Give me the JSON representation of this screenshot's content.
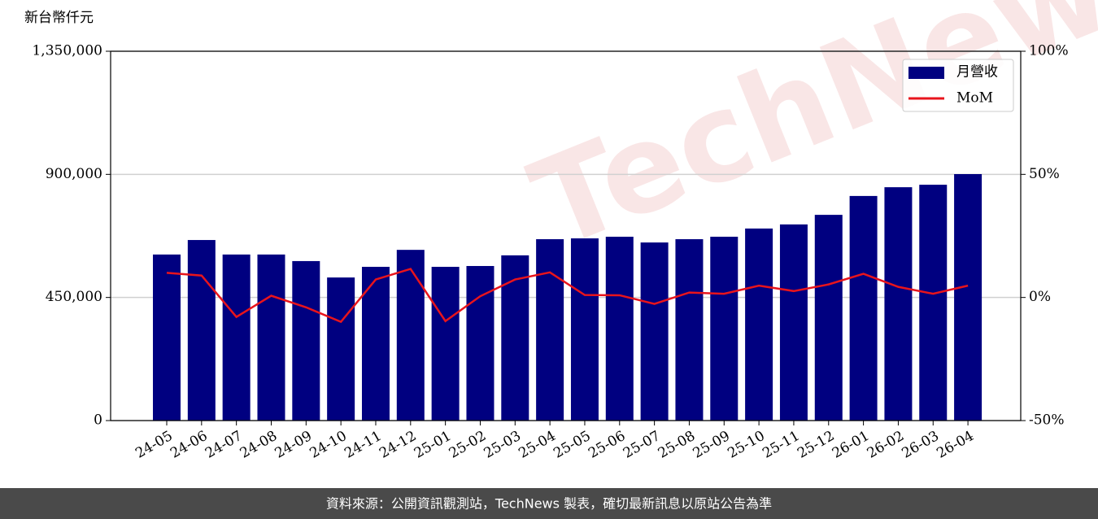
{
  "chart_data": {
    "type": "bar_line",
    "unit_label": "新台幣仟元",
    "footer": "資料來源：公開資訊觀測站，TechNews 製表，確切最新訊息以原站公告為準",
    "watermark": "TechNews",
    "categories": [
      "24-05",
      "24-06",
      "24-07",
      "24-08",
      "24-09",
      "24-10",
      "24-11",
      "24-12",
      "25-01",
      "25-02",
      "25-03",
      "25-04",
      "25-05",
      "25-06",
      "25-07",
      "25-08",
      "25-09",
      "25-10",
      "25-11",
      "25-12",
      "26-01",
      "26-02",
      "26-03",
      "26-04"
    ],
    "series": [
      {
        "name": "月營收",
        "type": "bar",
        "color": "#000080",
        "values": [
          607000,
          660000,
          607000,
          607000,
          583000,
          523000,
          562000,
          624000,
          562000,
          565000,
          604000,
          663000,
          666000,
          672000,
          651000,
          663000,
          672000,
          702000,
          717000,
          752000,
          821000,
          853000,
          862000,
          901000
        ]
      },
      {
        "name": "MoM",
        "type": "line",
        "axis": "y2",
        "color": "#e8141c",
        "values": [
          10,
          8.9,
          -7.9,
          0.7,
          -4,
          -9.9,
          7.3,
          11.6,
          -9.6,
          0.5,
          7.3,
          10.2,
          1,
          0.9,
          -2.6,
          2,
          1.5,
          4.8,
          2.6,
          5.3,
          9.6,
          4.3,
          1.5,
          4.8
        ]
      }
    ],
    "ylim": [
      0,
      1350000
    ],
    "yticks": [
      0,
      {
        "value": 450000,
        "label": "450,000"
      },
      {
        "value": 900000,
        "label": "900,000"
      },
      {
        "value": 1350000,
        "label": "1,350,000"
      }
    ],
    "y2lim": [
      -50,
      100
    ],
    "y2ticks": [
      {
        "value": -50,
        "label": "-50%"
      },
      {
        "value": 0,
        "label": "0%"
      },
      {
        "value": 50,
        "label": "50%"
      },
      {
        "value": 100,
        "label": "100%"
      }
    ],
    "grid": true,
    "legend": "upper right"
  }
}
